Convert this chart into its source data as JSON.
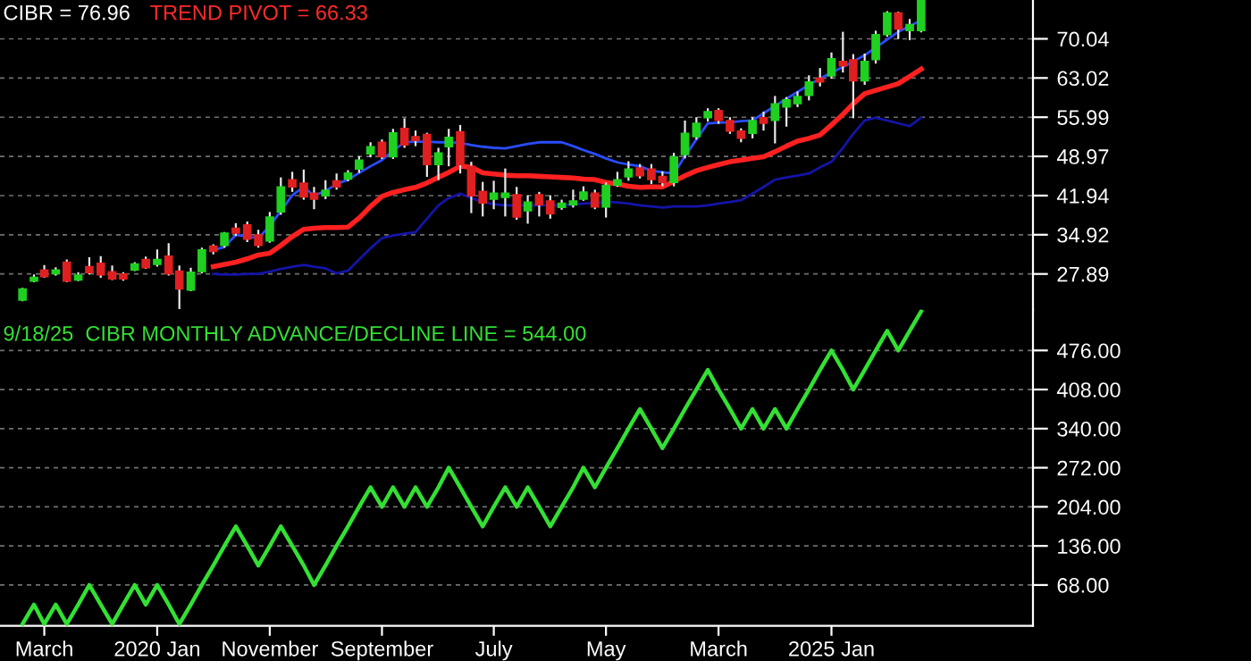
{
  "chart_data": [
    {
      "type": "candlestick",
      "x": [
        "2019-01",
        "2019-02",
        "2019-03",
        "2019-04",
        "2019-05",
        "2019-06",
        "2019-07",
        "2019-08",
        "2019-09",
        "2019-10",
        "2019-11",
        "2019-12",
        "2020-01",
        "2020-02",
        "2020-03",
        "2020-04",
        "2020-05",
        "2020-06",
        "2020-07",
        "2020-08",
        "2020-09",
        "2020-10",
        "2020-11",
        "2020-12",
        "2021-01",
        "2021-02",
        "2021-03",
        "2021-04",
        "2021-05",
        "2021-06",
        "2021-07",
        "2021-08",
        "2021-09",
        "2021-10",
        "2021-11",
        "2021-12",
        "2022-01",
        "2022-02",
        "2022-03",
        "2022-04",
        "2022-05",
        "2022-06",
        "2022-07",
        "2022-08",
        "2022-09",
        "2022-10",
        "2022-11",
        "2022-12",
        "2023-01",
        "2023-02",
        "2023-03",
        "2023-04",
        "2023-05",
        "2023-06",
        "2023-07",
        "2023-08",
        "2023-09",
        "2023-10",
        "2023-11",
        "2023-12",
        "2024-01",
        "2024-02",
        "2024-03",
        "2024-04",
        "2024-05",
        "2024-06",
        "2024-07",
        "2024-08",
        "2024-09",
        "2024-10",
        "2024-11",
        "2024-12",
        "2025-01",
        "2025-02",
        "2025-03",
        "2025-04",
        "2025-05",
        "2025-06",
        "2025-07",
        "2025-08",
        "2025-09"
      ],
      "ohlc": [
        [
          23.2,
          25.4,
          23.0,
          25.2
        ],
        [
          26.6,
          27.8,
          26.4,
          27.3
        ],
        [
          28.6,
          29.5,
          27.2,
          27.4
        ],
        [
          27.9,
          29.1,
          27.6,
          28.6
        ],
        [
          30.0,
          30.5,
          26.4,
          26.6
        ],
        [
          26.8,
          28.2,
          26.6,
          27.7
        ],
        [
          29.2,
          30.9,
          27.8,
          28.1
        ],
        [
          29.8,
          31.1,
          27.2,
          27.7
        ],
        [
          28.3,
          29.4,
          26.8,
          27.0
        ],
        [
          27.9,
          28.2,
          26.7,
          27.0
        ],
        [
          28.6,
          30.0,
          28.4,
          29.7
        ],
        [
          30.5,
          31.0,
          28.8,
          29.0
        ],
        [
          29.6,
          32.3,
          29.2,
          30.5
        ],
        [
          31.1,
          33.4,
          27.6,
          27.9
        ],
        [
          28.4,
          29.4,
          21.6,
          25.2
        ],
        [
          25.0,
          29.0,
          24.8,
          28.2
        ],
        [
          28.3,
          32.6,
          28.0,
          32.2
        ],
        [
          32.9,
          33.2,
          31.4,
          31.9
        ],
        [
          33.0,
          35.4,
          32.6,
          35.2
        ],
        [
          36.1,
          37.0,
          34.7,
          35.2
        ],
        [
          36.7,
          37.3,
          33.6,
          34.1
        ],
        [
          34.9,
          35.8,
          32.6,
          33.0
        ],
        [
          33.8,
          39.0,
          33.5,
          38.1
        ],
        [
          39.0,
          45.2,
          38.5,
          43.5
        ],
        [
          44.8,
          46.2,
          42.6,
          43.5
        ],
        [
          44.2,
          46.6,
          41.2,
          41.7
        ],
        [
          42.4,
          43.5,
          39.5,
          41.3
        ],
        [
          41.9,
          44.7,
          41.3,
          42.9
        ],
        [
          44.6,
          45.9,
          43.0,
          43.5
        ],
        [
          44.9,
          46.5,
          44.5,
          46.0
        ],
        [
          46.7,
          49.0,
          46.0,
          48.3
        ],
        [
          49.4,
          51.5,
          48.8,
          50.7
        ],
        [
          51.5,
          52.0,
          48.5,
          48.9
        ],
        [
          48.9,
          53.9,
          48.5,
          53.2
        ],
        [
          54.0,
          55.8,
          50.5,
          51.0
        ],
        [
          52.5,
          53.6,
          50.8,
          51.8
        ],
        [
          52.9,
          53.2,
          45.3,
          47.5
        ],
        [
          47.5,
          50.5,
          44.7,
          49.6
        ],
        [
          50.7,
          53.9,
          47.2,
          52.4
        ],
        [
          53.4,
          54.6,
          45.9,
          47.5
        ],
        [
          47.2,
          48.0,
          38.8,
          41.9
        ],
        [
          42.7,
          44.4,
          38.2,
          40.6
        ],
        [
          41.3,
          44.6,
          39.5,
          42.4
        ],
        [
          41.6,
          46.8,
          38.2,
          42.4
        ],
        [
          42.1,
          43.5,
          37.6,
          38.1
        ],
        [
          39.2,
          42.0,
          36.9,
          40.8
        ],
        [
          42.1,
          42.6,
          38.2,
          40.3
        ],
        [
          41.0,
          42.0,
          37.8,
          38.7
        ],
        [
          39.8,
          41.2,
          39.4,
          40.6
        ],
        [
          40.3,
          43.0,
          39.8,
          41.0
        ],
        [
          41.3,
          43.6,
          41.0,
          42.6
        ],
        [
          42.4,
          43.0,
          39.5,
          39.9
        ],
        [
          39.9,
          44.3,
          38.0,
          43.8
        ],
        [
          43.8,
          46.2,
          43.5,
          44.8
        ],
        [
          45.3,
          48.1,
          44.6,
          46.7
        ],
        [
          46.9,
          47.6,
          45.0,
          45.5
        ],
        [
          46.7,
          47.6,
          44.0,
          44.8
        ],
        [
          45.4,
          46.3,
          43.6,
          44.3
        ],
        [
          44.3,
          49.6,
          43.6,
          48.9
        ],
        [
          49.3,
          55.4,
          48.6,
          53.1
        ],
        [
          52.5,
          56.0,
          52.0,
          54.9
        ],
        [
          55.9,
          57.6,
          55.2,
          57.0
        ],
        [
          57.2,
          57.6,
          54.8,
          55.4
        ],
        [
          55.4,
          56.0,
          53.0,
          53.5
        ],
        [
          53.5,
          54.0,
          51.5,
          52.2
        ],
        [
          53.1,
          56.0,
          52.2,
          55.4
        ],
        [
          55.9,
          57.0,
          53.6,
          54.9
        ],
        [
          55.4,
          59.8,
          51.3,
          58.4
        ],
        [
          57.8,
          59.6,
          54.3,
          59.1
        ],
        [
          58.4,
          60.6,
          57.8,
          59.7
        ],
        [
          59.9,
          63.5,
          59.0,
          62.3
        ],
        [
          63.0,
          64.8,
          61.5,
          62.3
        ],
        [
          63.4,
          67.6,
          62.9,
          66.5
        ],
        [
          66.0,
          71.3,
          64.0,
          65.2
        ],
        [
          66.3,
          67.3,
          55.8,
          62.5
        ],
        [
          62.5,
          67.4,
          61.8,
          66.0
        ],
        [
          66.3,
          71.5,
          65.6,
          70.8
        ],
        [
          70.8,
          75.0,
          70.4,
          74.7
        ],
        [
          74.7,
          74.9,
          70.0,
          71.8
        ],
        [
          71.5,
          73.6,
          69.8,
          72.6
        ],
        [
          71.5,
          76.96,
          71.2,
          76.96
        ]
      ],
      "series": [
        {
          "type": "line",
          "color": "#ff2020",
          "values": [
            null,
            null,
            null,
            null,
            null,
            null,
            null,
            null,
            null,
            null,
            null,
            null,
            null,
            null,
            null,
            null,
            null,
            29.2,
            29.6,
            30.0,
            30.6,
            31.3,
            31.6,
            33.0,
            34.6,
            35.9,
            36.1,
            36.2,
            36.2,
            36.3,
            37.9,
            40.0,
            41.8,
            42.5,
            43.0,
            43.4,
            44.2,
            45.2,
            46.1,
            47.2,
            47.0,
            46.0,
            45.8,
            45.6,
            45.5,
            45.5,
            45.4,
            45.3,
            45.2,
            45.1,
            44.9,
            44.8,
            44.3,
            44.0,
            43.6,
            43.4,
            43.5,
            43.5,
            44.5,
            45.5,
            46.4,
            47.0,
            47.5,
            48.0,
            48.3,
            48.6,
            48.9,
            49.8,
            50.8,
            51.7,
            52.2,
            52.8,
            54.6,
            56.5,
            58.4,
            60.2,
            60.8,
            61.4,
            62.0,
            63.3,
            64.6
          ]
        },
        {
          "type": "line",
          "color": "#2a4cff",
          "values": [
            null,
            null,
            null,
            null,
            null,
            null,
            null,
            null,
            null,
            null,
            null,
            null,
            null,
            null,
            null,
            null,
            null,
            32.2,
            32.7,
            34.9,
            34.6,
            34.3,
            36.5,
            39.2,
            42.0,
            43.5,
            41.9,
            42.8,
            44.0,
            44.8,
            46.0,
            47.2,
            48.3,
            50.0,
            51.5,
            51.6,
            51.6,
            51.5,
            51.5,
            51.4,
            51.0,
            50.7,
            50.5,
            50.4,
            50.8,
            51.2,
            51.5,
            51.5,
            51.5,
            50.8,
            50.1,
            49.4,
            48.6,
            47.9,
            47.5,
            47.2,
            46.4,
            46.1,
            45.9,
            49.0,
            52.0,
            54.9,
            55.0,
            55.1,
            55.3,
            55.4,
            56.7,
            58.0,
            59.3,
            60.5,
            61.8,
            62.9,
            64.0,
            65.0,
            66.0,
            67.1,
            68.5,
            69.9,
            71.3,
            72.3,
            73.4
          ]
        },
        {
          "type": "line",
          "color": "#1414a8",
          "values": [
            null,
            null,
            null,
            null,
            null,
            null,
            null,
            null,
            null,
            null,
            null,
            null,
            null,
            null,
            null,
            null,
            null,
            27.9,
            27.8,
            27.8,
            27.9,
            27.9,
            28.3,
            28.8,
            29.2,
            29.5,
            29.2,
            28.9,
            28.0,
            28.5,
            30.5,
            32.5,
            34.3,
            34.8,
            35.1,
            35.4,
            37.8,
            40.2,
            41.5,
            42.3,
            41.5,
            40.8,
            40.4,
            40.2,
            40.2,
            40.2,
            40.2,
            40.2,
            40.2,
            40.3,
            40.5,
            40.6,
            40.8,
            40.7,
            40.5,
            40.2,
            40.0,
            39.8,
            40.0,
            40.0,
            40.0,
            40.2,
            40.5,
            40.8,
            41.1,
            42.3,
            43.5,
            44.8,
            45.2,
            45.5,
            45.9,
            47.0,
            48.0,
            50.5,
            53.0,
            55.4,
            55.9,
            55.4,
            54.9,
            54.4,
            55.9
          ]
        }
      ],
      "annotations": [
        "CIBR = 76.96",
        "TREND PIVOT = 66.33"
      ],
      "xlim": [
        "2018-11",
        "2026-07"
      ],
      "ylim": [
        21.5,
        77.0
      ],
      "yticks": [
        27.89,
        34.92,
        41.94,
        48.97,
        55.99,
        63.02,
        70.04
      ],
      "grid": "y",
      "tick_labels": "y"
    },
    {
      "type": "line",
      "x": [
        "2019-01",
        "2019-02",
        "2019-03",
        "2019-04",
        "2019-05",
        "2019-06",
        "2019-07",
        "2019-08",
        "2019-09",
        "2019-10",
        "2019-11",
        "2019-12",
        "2020-01",
        "2020-02",
        "2020-03",
        "2020-04",
        "2020-05",
        "2020-06",
        "2020-07",
        "2020-08",
        "2020-09",
        "2020-10",
        "2020-11",
        "2020-12",
        "2021-01",
        "2021-02",
        "2021-03",
        "2021-04",
        "2021-05",
        "2021-06",
        "2021-07",
        "2021-08",
        "2021-09",
        "2021-10",
        "2021-11",
        "2021-12",
        "2022-01",
        "2022-02",
        "2022-03",
        "2022-04",
        "2022-05",
        "2022-06",
        "2022-07",
        "2022-08",
        "2022-09",
        "2022-10",
        "2022-11",
        "2022-12",
        "2023-01",
        "2023-02",
        "2023-03",
        "2023-04",
        "2023-05",
        "2023-06",
        "2023-07",
        "2023-08",
        "2023-09",
        "2023-10",
        "2023-11",
        "2023-12",
        "2024-01",
        "2024-02",
        "2024-03",
        "2024-04",
        "2024-05",
        "2024-06",
        "2024-07",
        "2024-08",
        "2024-09",
        "2024-10",
        "2024-11",
        "2024-12",
        "2025-01",
        "2025-02",
        "2025-03",
        "2025-04",
        "2025-05",
        "2025-06",
        "2025-07",
        "2025-08",
        "2025-09"
      ],
      "values": [
        0,
        34,
        0,
        34,
        0,
        34,
        68,
        34,
        0,
        34,
        68,
        34,
        68,
        34,
        0,
        34,
        68,
        102,
        136,
        170,
        136,
        102,
        136,
        170,
        136,
        102,
        68,
        102,
        136,
        170,
        204,
        238,
        204,
        238,
        204,
        238,
        204,
        238,
        272,
        238,
        204,
        170,
        204,
        238,
        204,
        238,
        204,
        170,
        204,
        238,
        272,
        238,
        272,
        306,
        340,
        374,
        340,
        306,
        340,
        374,
        408,
        442,
        408,
        374,
        340,
        374,
        340,
        374,
        340,
        374,
        408,
        442,
        476,
        442,
        408,
        442,
        476,
        510,
        476,
        510,
        544
      ],
      "color": "#33e033",
      "annotations": [
        "9/18/25  CIBR MONTHLY ADVANCE/DECLINE LINE = 544.00"
      ],
      "xlim": [
        "2018-11",
        "2026-07"
      ],
      "xticks": [
        {
          "value": "2019-03",
          "label": "March"
        },
        {
          "value": "2020-01",
          "label": "2020 Jan"
        },
        {
          "value": "2020-11",
          "label": "November"
        },
        {
          "value": "2021-09",
          "label": "September"
        },
        {
          "value": "2022-07",
          "label": "July"
        },
        {
          "value": "2023-05",
          "label": "May"
        },
        {
          "value": "2024-03",
          "label": "March"
        },
        {
          "value": "2025-01",
          "label": "2025 Jan"
        }
      ],
      "ylim": [
        -3,
        547
      ],
      "yticks": [
        {
          "value": 68,
          "label": "68.00"
        },
        {
          "value": 136,
          "label": "136.00"
        },
        {
          "value": 204,
          "label": "204.00"
        },
        {
          "value": 272,
          "label": "272.00"
        },
        {
          "value": 340,
          "label": "340.00"
        },
        {
          "value": 408,
          "label": "408.00"
        },
        {
          "value": 476,
          "label": "476.00"
        }
      ],
      "grid": "y"
    }
  ]
}
